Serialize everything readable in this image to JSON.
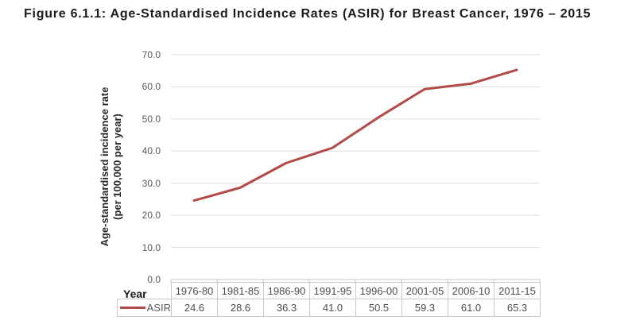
{
  "chart_data": {
    "type": "line",
    "title": "Figure 6.1.1: Age-Standardised Incidence Rates (ASIR) for Breast Cancer, 1976 – 2015",
    "categories": [
      "1976-80",
      "1981-85",
      "1986-90",
      "1991-95",
      "1996-00",
      "2001-05",
      "2006-10",
      "2011-15"
    ],
    "series": [
      {
        "name": "ASIR",
        "values": [
          24.6,
          28.6,
          36.3,
          41.0,
          50.5,
          59.3,
          61.0,
          65.3
        ],
        "display_values": [
          "24.6",
          "28.6",
          "36.3",
          "41.0",
          "50.5",
          "59.3",
          "61.0",
          "65.3"
        ],
        "color": "#b24b47"
      }
    ],
    "xlabel": "Year",
    "ylabel": "Age-standardised incidence rate (per 100,000 per year)",
    "ylabel_lines": [
      "Age-standardised incidence rate",
      "(per 100,000 per year)"
    ],
    "ylim": [
      0,
      70
    ],
    "ytick_step": 10,
    "ytick_labels": [
      "0.0",
      "10.0",
      "20.0",
      "30.0",
      "40.0",
      "50.0",
      "60.0",
      "70.0"
    ],
    "grid": "horizontal gridlines on",
    "legend_position": "left of data table",
    "data_table_shown": true,
    "colors": {
      "series_line": "#b24b47",
      "gridline": "#dcdcdc",
      "axis_line": "#c6c6c6",
      "table_border": "#c9c9c9"
    }
  }
}
